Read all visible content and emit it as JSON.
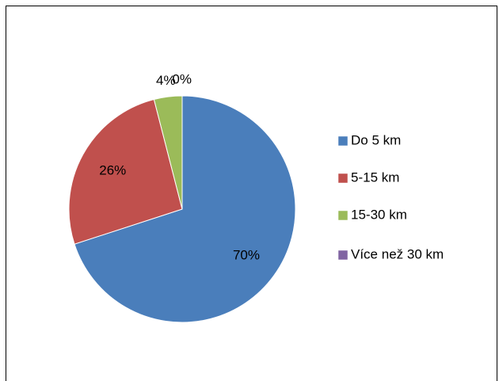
{
  "chart_data": {
    "type": "pie",
    "categories": [
      "Do 5 km",
      "5-15 km",
      "15-30 km",
      "Více než 30 km"
    ],
    "values": [
      70,
      26,
      4,
      0
    ],
    "value_labels": [
      "70%",
      "26%",
      "4%",
      "0%"
    ],
    "colors": [
      "#4a7ebb",
      "#c0504d",
      "#9bbb59",
      "#8064a2"
    ],
    "legend": "right"
  }
}
